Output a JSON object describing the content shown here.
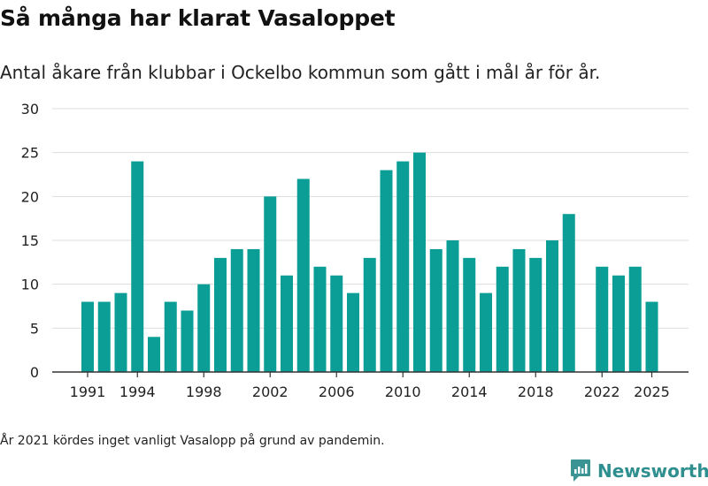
{
  "title": "Så många har klarat Vasaloppet",
  "subtitle": "Antal åkare från klubbar i Ockelbo kommun som gått i mål år för år.",
  "note": "År 2021 kördes inget vanligt Vasalopp på grund av pandemin.",
  "brand": {
    "name": "Newsworthy",
    "color": "#3a9494"
  },
  "colors": {
    "bar": "#0a9e96",
    "grid": "#dddddd",
    "axis": "#333333"
  },
  "chart_data": {
    "type": "bar",
    "title": "Så många har klarat Vasaloppet",
    "xlabel": "",
    "ylabel": "",
    "ylim": [
      0,
      30
    ],
    "yticks": [
      0,
      5,
      10,
      15,
      20,
      25,
      30
    ],
    "xticks": [
      1991,
      1994,
      1998,
      2002,
      2006,
      2010,
      2014,
      2018,
      2022,
      2025
    ],
    "grid": true,
    "categories": [
      1991,
      1992,
      1993,
      1994,
      1995,
      1996,
      1997,
      1998,
      1999,
      2000,
      2001,
      2002,
      2003,
      2004,
      2005,
      2006,
      2007,
      2008,
      2009,
      2010,
      2011,
      2012,
      2013,
      2014,
      2015,
      2016,
      2017,
      2018,
      2019,
      2020,
      2022,
      2023,
      2024,
      2025
    ],
    "values": [
      8,
      8,
      9,
      24,
      4,
      8,
      7,
      10,
      13,
      14,
      14,
      20,
      11,
      22,
      12,
      11,
      9,
      13,
      23,
      24,
      25,
      14,
      15,
      13,
      9,
      12,
      14,
      13,
      15,
      18,
      12,
      11,
      12,
      8
    ]
  }
}
